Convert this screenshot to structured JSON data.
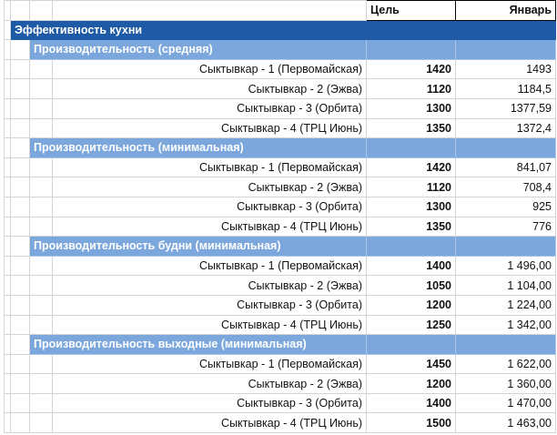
{
  "header": {
    "goal": "Цель",
    "january": "Январь"
  },
  "section": {
    "title": "Эффективность кухни"
  },
  "groups": [
    {
      "title": "Производительность (средняя)",
      "rows": [
        {
          "name": "Сыктывкар - 1 (Первомайская)",
          "goal": "1420",
          "jan": "1493"
        },
        {
          "name": "Сыктывкар - 2 (Эжва)",
          "goal": "1120",
          "jan": "1184,5"
        },
        {
          "name": "Сыктывкар - 3 (Орбита)",
          "goal": "1300",
          "jan": "1377,59"
        },
        {
          "name": "Сыктывкар - 4 (ТРЦ Июнь)",
          "goal": "1350",
          "jan": "1372,4"
        }
      ]
    },
    {
      "title": "Производительность (минимальная)",
      "rows": [
        {
          "name": "Сыктывкар - 1 (Первомайская)",
          "goal": "1420",
          "jan": "841,07"
        },
        {
          "name": "Сыктывкар - 2 (Эжва)",
          "goal": "1120",
          "jan": "708,4"
        },
        {
          "name": "Сыктывкар - 3 (Орбита)",
          "goal": "1300",
          "jan": "925"
        },
        {
          "name": "Сыктывкар - 4 (ТРЦ Июнь)",
          "goal": "1350",
          "jan": "776"
        }
      ]
    },
    {
      "title": "Производительность будни (минимальная)",
      "rows": [
        {
          "name": "Сыктывкар - 1 (Первомайская)",
          "goal": "1400",
          "jan": "1 496,00"
        },
        {
          "name": "Сыктывкар - 2 (Эжва)",
          "goal": "1050",
          "jan": "1 104,00"
        },
        {
          "name": "Сыктывкар - 3 (Орбита)",
          "goal": "1200",
          "jan": "1 224,00"
        },
        {
          "name": "Сыктывкар - 4 (ТРЦ Июнь)",
          "goal": "1250",
          "jan": "1 342,00"
        }
      ]
    },
    {
      "title": "Производительность выходные (минимальная)",
      "rows": [
        {
          "name": "Сыктывкар - 1 (Первомайская)",
          "goal": "1450",
          "jan": "1 622,00"
        },
        {
          "name": "Сыктывкар - 2 (Эжва)",
          "goal": "1200",
          "jan": "1 360,00"
        },
        {
          "name": "Сыктывкар - 3 (Орбита)",
          "goal": "1400",
          "jan": "1 470,00"
        },
        {
          "name": "Сыктывкар - 4 (ТРЦ Июнь)",
          "goal": "1500",
          "jan": "1 463,00"
        }
      ]
    }
  ]
}
